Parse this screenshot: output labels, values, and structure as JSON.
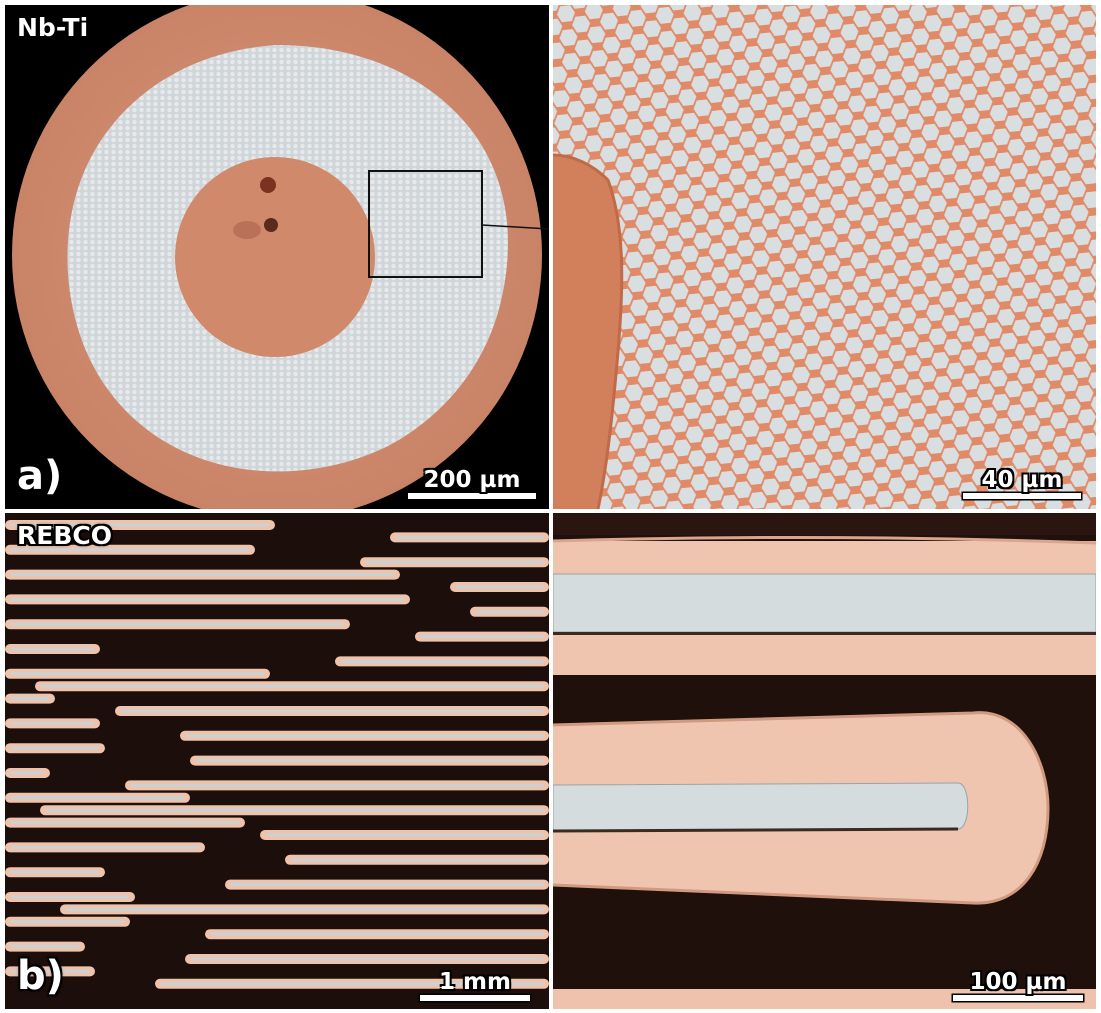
{
  "panels": {
    "a_overview": {
      "tag": "Nb-Ti",
      "letter": "a)",
      "scale_label": "200 µm"
    },
    "a_zoom": {
      "scale_label": "40 µm"
    },
    "b_overview": {
      "tag": "REBCO",
      "letter": "b)",
      "scale_label": "1 mm"
    },
    "b_zoom": {
      "scale_label": "100 µm"
    }
  },
  "colors": {
    "copper": "#d88c6c",
    "copper_light": "#f1c7b2",
    "filament_grey": "#d3d8dc",
    "background": "#000000",
    "tape_background": "#1c0f0b"
  }
}
